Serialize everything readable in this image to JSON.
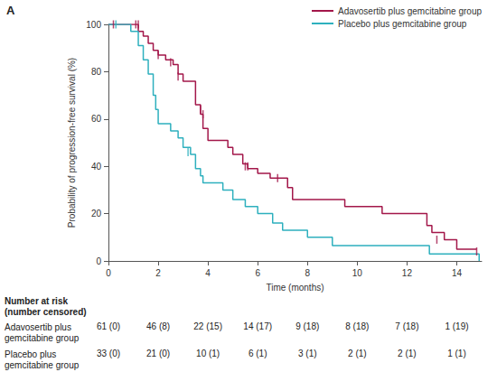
{
  "chart_data": {
    "type": "kaplan-meier",
    "title": "A",
    "x_label": "Time (months)",
    "y_label": "Probability of progression-free survival (%)",
    "xlim": [
      0,
      15
    ],
    "xticks": [
      0,
      2,
      4,
      6,
      8,
      10,
      12,
      14
    ],
    "ylim": [
      0,
      100
    ],
    "yticks": [
      0,
      20,
      40,
      60,
      80,
      100
    ],
    "grid": false,
    "legend": "upper right",
    "series": [
      {
        "name": "Adavosertib plus gemcitabine group",
        "color": "#a3174a",
        "line_style": "step",
        "marker": "tick",
        "x": [
          0,
          1.2,
          1.4,
          1.6,
          1.8,
          2.0,
          2.3,
          2.6,
          2.8,
          3.0,
          3.5,
          3.7,
          3.8,
          4.0,
          4.8,
          5.0,
          5.4,
          5.6,
          6.0,
          6.5,
          7.2,
          7.4,
          9.5,
          11.0,
          12.8,
          13.0,
          13.5,
          14.0,
          14.8
        ],
        "values": [
          100,
          97,
          95,
          92,
          89,
          87,
          85,
          83,
          79,
          76,
          66,
          62,
          56,
          51,
          48,
          45,
          41,
          39,
          37,
          35,
          31,
          26,
          23,
          20,
          15,
          12,
          9,
          5,
          5
        ],
        "censor_x": [
          0.2,
          1.1,
          1.2,
          2.0,
          2.5,
          2.8,
          3.7,
          3.8,
          5.5,
          5.6,
          6.8,
          13.2,
          14.8
        ],
        "censor_values": [
          100,
          100,
          100,
          87,
          84,
          78,
          64,
          62,
          40,
          40,
          35,
          9,
          4
        ]
      },
      {
        "name": "Placebo plus gemcitabine group",
        "color": "#2eb0be",
        "line_style": "step",
        "marker": "tick",
        "x": [
          0,
          0.9,
          1.2,
          1.4,
          1.6,
          1.8,
          1.9,
          2.0,
          2.5,
          2.8,
          3.0,
          3.3,
          3.5,
          3.7,
          3.8,
          4.6,
          5.0,
          5.5,
          6.0,
          6.6,
          7.0,
          8.0,
          9.0,
          12.9,
          14.9
        ],
        "values": [
          100,
          97,
          91,
          85,
          79,
          70,
          64,
          58,
          55,
          52,
          48,
          45,
          39,
          36,
          33,
          30,
          26,
          23,
          20,
          16,
          13,
          10,
          6.5,
          3,
          0
        ],
        "censor_x": [
          0.3,
          3.2
        ],
        "censor_values": [
          100,
          46
        ]
      }
    ],
    "risk_table": {
      "title": "Number at risk",
      "subtitle": "(number censored)",
      "x": [
        0,
        2,
        4,
        6,
        8,
        10,
        12,
        14
      ],
      "rows": [
        {
          "name": "Adavosertib plus gemcitabine group",
          "labels": [
            "61 (0)",
            "46 (8)",
            "22 (15)",
            "14 (17)",
            "9 (18)",
            "8 (18)",
            "7 (18)",
            "1 (19)"
          ]
        },
        {
          "name": "Placebo plus gemcitabine group",
          "labels": [
            "33 (0)",
            "21 (0)",
            "10 (1)",
            "6 (1)",
            "3 (1)",
            "2 (1)",
            "2 (1)",
            "1 (1)"
          ]
        }
      ]
    }
  }
}
